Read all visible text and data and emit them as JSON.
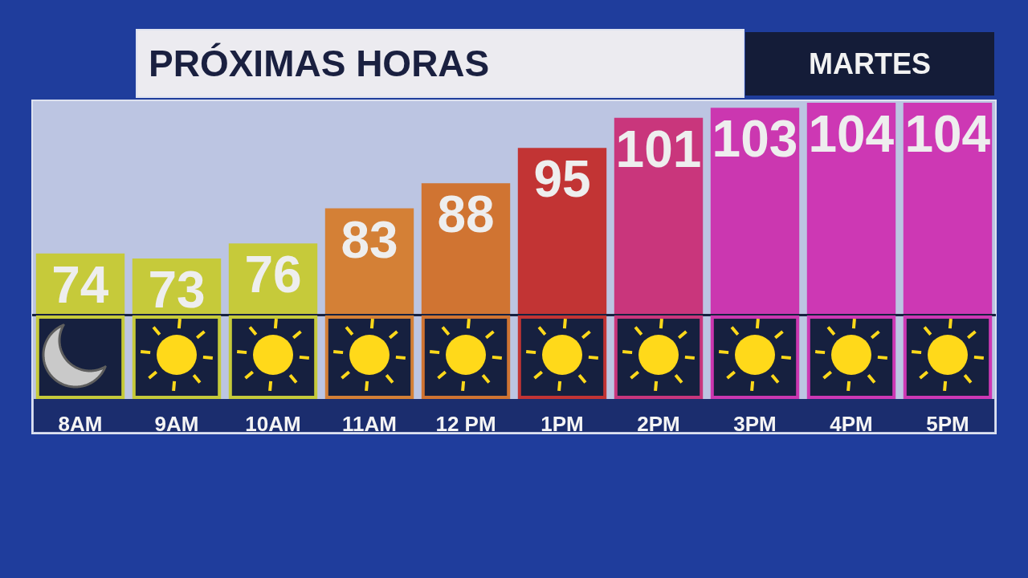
{
  "chart_data": {
    "type": "bar",
    "title": "PRÓXIMAS HORAS",
    "subtitle": "MARTES",
    "categories": [
      "8AM",
      "9AM",
      "10AM",
      "11AM",
      "12 PM",
      "1PM",
      "2PM",
      "3PM",
      "4PM",
      "5PM"
    ],
    "values": [
      74,
      73,
      76,
      83,
      88,
      95,
      101,
      103,
      104,
      104
    ],
    "colors": [
      "#c6ca3a",
      "#c6ca3a",
      "#c6ca3a",
      "#d48036",
      "#d07432",
      "#c23434",
      "#c9367c",
      "#cb37b0",
      "#cd38b4",
      "#cd38b4"
    ],
    "ylim": [
      62,
      104
    ],
    "data_labels": true,
    "tick_labels": "x"
  }
}
